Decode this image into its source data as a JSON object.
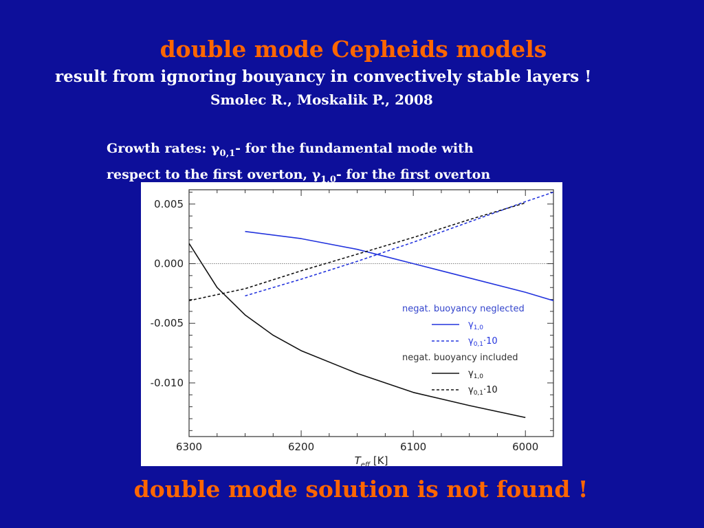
{
  "slide": {
    "title": "double mode Cepheids models",
    "subtitle": "result from ignoring bouyancy  in convectively stable layers !",
    "citation": "Smolec R., Moskalik P., 2008",
    "caption": {
      "prefix": "Growth rates: ",
      "g01_symbol": "γ",
      "g01_sub": "0,1",
      "mid": "- for the fundamental mode with",
      "line2": "respect to the first overton, ",
      "g10_symbol": "γ",
      "g10_sub": "1,0",
      "end": "- for the first overton"
    },
    "footer": "double mode solution is not found !"
  },
  "chart_data": {
    "type": "line",
    "xlabel": "T",
    "xlabel_sub": "eff",
    "xlabel_unit": " [K]",
    "xlim": [
      6300,
      5975
    ],
    "ylim": [
      -0.0145,
      0.0062
    ],
    "x_reversed": true,
    "xticks": [
      6300,
      6200,
      6100,
      6000
    ],
    "xtick_labels": [
      "6300",
      "6200",
      "6100",
      "6000"
    ],
    "yticks": [
      0.005,
      0.0,
      -0.005,
      -0.01
    ],
    "ytick_labels": [
      "0.005",
      "0.000",
      "-0.005",
      "-0.010"
    ],
    "zero_line": true,
    "colors": {
      "blue": "#2233dd",
      "black": "#111111"
    },
    "legend": {
      "placement": "lower-right",
      "group1_title": "negat. buoyancy neglected",
      "group2_title": "negat. buoyancy included"
    },
    "series": [
      {
        "name": "γ1,0",
        "name_base": "γ",
        "name_sub": "1,0",
        "name_suffix": "",
        "group": 1,
        "color": "blue",
        "dash": false,
        "x": [
          6250,
          6200,
          6150,
          6100,
          6050,
          6000,
          5975
        ],
        "y": [
          0.0027,
          0.0021,
          0.0012,
          0.0,
          -0.0012,
          -0.0024,
          -0.0031
        ]
      },
      {
        "name": "γ0,1·10",
        "name_base": "γ",
        "name_sub": "0,1",
        "name_suffix": "·10",
        "group": 1,
        "color": "blue",
        "dash": true,
        "x": [
          6250,
          6200,
          6150,
          6100,
          6050,
          6000,
          5975
        ],
        "y": [
          -0.0027,
          -0.0013,
          0.0002,
          0.0018,
          0.0035,
          0.0052,
          0.006
        ]
      },
      {
        "name": "γ1,0",
        "name_base": "γ",
        "name_sub": "1,0",
        "name_suffix": "",
        "group": 2,
        "color": "black",
        "dash": false,
        "x": [
          6300,
          6275,
          6250,
          6225,
          6200,
          6150,
          6100,
          6050,
          6000
        ],
        "y": [
          0.0017,
          -0.002,
          -0.0043,
          -0.006,
          -0.0073,
          -0.0092,
          -0.0108,
          -0.0119,
          -0.0129
        ]
      },
      {
        "name": "γ0,1·10",
        "name_base": "γ",
        "name_sub": "0,1",
        "name_suffix": "·10",
        "group": 2,
        "color": "black",
        "dash": true,
        "x": [
          6300,
          6250,
          6200,
          6150,
          6100,
          6050,
          6000
        ],
        "y": [
          -0.0031,
          -0.0021,
          -0.0006,
          0.0008,
          0.0022,
          0.0037,
          0.0051
        ]
      }
    ]
  }
}
